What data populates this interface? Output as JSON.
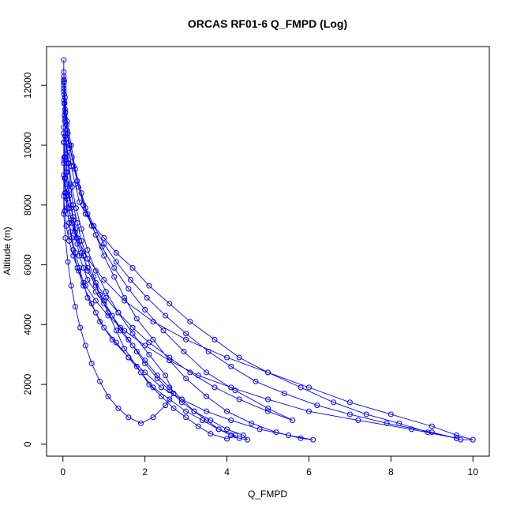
{
  "chart_data": {
    "type": "scatter",
    "title": "ORCAS RF01-6 Q_FMPD (Log)",
    "xlabel": "Q_FMPD",
    "ylabel": "Altitude (m)",
    "xlim": [
      -0.4,
      10.4
    ],
    "ylim": [
      -400,
      13300
    ],
    "x_ticks": [
      "0",
      "2",
      "4",
      "6",
      "8",
      "10"
    ],
    "x_tick_values": [
      0,
      2,
      4,
      6,
      8,
      10
    ],
    "y_ticks": [
      "0",
      "2000",
      "4000",
      "6000",
      "8000",
      "10000",
      "12000"
    ],
    "y_tick_values": [
      0,
      2000,
      4000,
      6000,
      8000,
      10000,
      12000
    ],
    "grid": false,
    "series_color": "#0000ff",
    "marker": "open-circle",
    "connect_points": true,
    "x": [
      0.02,
      0.02,
      0.03,
      0.02,
      0.03,
      0.05,
      0.05,
      0.08,
      0.1,
      0.15,
      0.2,
      0.25,
      0.3,
      0.4,
      0.5,
      0.6,
      0.8,
      1.0,
      1.2,
      1.4,
      1.7,
      2.0,
      2.3,
      2.6,
      2.9,
      3.2,
      3.5,
      3.8,
      4.1,
      4.3,
      4.5,
      4.4,
      4.0,
      3.6,
      3.2,
      2.9,
      2.6,
      2.3,
      2.0,
      1.8,
      1.6,
      1.4,
      1.2,
      1.0,
      0.8,
      0.6,
      0.5,
      0.4,
      0.35,
      0.3,
      0.25,
      0.2,
      0.15,
      0.1,
      0.08,
      0.05,
      0.03,
      0.02,
      0.02,
      0.03,
      0.05,
      0.08,
      0.12,
      0.18,
      0.25,
      0.35,
      0.45,
      0.6,
      0.75,
      0.9,
      1.1,
      1.3,
      1.5,
      1.8,
      2.1,
      2.4,
      2.7,
      3.0,
      3.3,
      3.6,
      4.0,
      4.2,
      3.8,
      3.4,
      3.0,
      2.6,
      2.2,
      1.9,
      1.6,
      1.3,
      1.0,
      0.8,
      0.6,
      0.5,
      0.4,
      0.3,
      0.22,
      0.15,
      0.1,
      0.05,
      0.02,
      0.02,
      0.05,
      0.1,
      0.2,
      0.3,
      0.45,
      0.6,
      0.8,
      1.0,
      1.25,
      1.5,
      1.8,
      2.2,
      2.6,
      3.0,
      3.5,
      4.0,
      4.6,
      5.2,
      5.8,
      6.1,
      5.5,
      4.8,
      4.1,
      3.5,
      2.9,
      2.4,
      2.0,
      1.6,
      1.2,
      0.9,
      0.7,
      0.5,
      0.35,
      0.25,
      0.18,
      0.12,
      0.08,
      0.05,
      0.03,
      0.02,
      0.02,
      0.03,
      0.06,
      0.1,
      0.15,
      0.2,
      0.3,
      0.4,
      0.55,
      0.75,
      1.0,
      1.3,
      1.7,
      2.1,
      2.6,
      3.1,
      3.7,
      4.3,
      5.0,
      5.8,
      6.6,
      7.4,
      8.2,
      8.9,
      9.6,
      9.7,
      10.0,
      9.6,
      9.0,
      8.0,
      7.0,
      6.0,
      5.0,
      4.0,
      3.0,
      2.2,
      1.5,
      1.0,
      0.6,
      0.35,
      0.2,
      0.1,
      0.05,
      0.03,
      0.02,
      0.02,
      0.04,
      0.08,
      0.14,
      0.22,
      0.32,
      0.45,
      0.6,
      0.8,
      1.05,
      1.35,
      1.7,
      2.1,
      2.5,
      2.7,
      2.5,
      2.2,
      1.9,
      1.6,
      1.35,
      1.1,
      0.9,
      0.7,
      0.55,
      0.42,
      0.3,
      0.2,
      0.12,
      0.06,
      0.02,
      0.02,
      0.05,
      0.12,
      0.22,
      0.35,
      0.5,
      0.7,
      0.95,
      1.25,
      1.6,
      2.0,
      2.45,
      2.95,
      3.5,
      4.2,
      5.0,
      5.6,
      5.0,
      4.3,
      3.7,
      3.1,
      2.6,
      2.1,
      1.7,
      1.35,
      1.05,
      0.8,
      0.6,
      0.45,
      0.32,
      0.22,
      0.14,
      0.08,
      0.04,
      0.02,
      0.02,
      0.04,
      0.09,
      0.16,
      0.26,
      0.38,
      0.55,
      0.75,
      1.0,
      1.3,
      1.65,
      2.05,
      2.5,
      3.0,
      3.55,
      4.1,
      4.7,
      5.4,
      6.2,
      7.0,
      7.9,
      9.0,
      9.6,
      8.5,
      7.2,
      6.0,
      5.0,
      4.1,
      3.3,
      2.6,
      2.0,
      1.5,
      1.1,
      0.8,
      0.55,
      0.38,
      0.25,
      0.15,
      0.08,
      0.04,
      0.02
    ],
    "y": [
      12850,
      12450,
      12150,
      11800,
      11400,
      10900,
      10300,
      9700,
      9100,
      8500,
      8000,
      7600,
      7200,
      6800,
      6300,
      5800,
      5300,
      4800,
      4300,
      3800,
      3300,
      2800,
      2300,
      1900,
      1500,
      1100,
      800,
      500,
      300,
      200,
      150,
      300,
      500,
      800,
      1100,
      1400,
      1800,
      2200,
      2700,
      3100,
      3500,
      3900,
      4300,
      4700,
      5100,
      5500,
      5900,
      6300,
      6700,
      7100,
      7500,
      7900,
      8300,
      8700,
      9100,
      9600,
      10100,
      10600,
      12100,
      11500,
      10800,
      10100,
      9400,
      8700,
      8000,
      7400,
      6800,
      6200,
      5600,
      5000,
      4400,
      3800,
      3200,
      2600,
      2000,
      1600,
      1200,
      900,
      600,
      350,
      180,
      300,
      500,
      800,
      1100,
      1500,
      1900,
      2400,
      2900,
      3400,
      3900,
      4400,
      4900,
      5400,
      5900,
      6400,
      6900,
      7400,
      7900,
      8400,
      9000,
      12300,
      11600,
      10800,
      10000,
      9200,
      8400,
      7700,
      7000,
      6300,
      5600,
      4900,
      4200,
      3500,
      2800,
      2200,
      1600,
      1100,
      700,
      400,
      200,
      150,
      300,
      500,
      800,
      1100,
      1500,
      1900,
      2400,
      2900,
      3500,
      4100,
      4700,
      5300,
      5900,
      6500,
      7100,
      7700,
      8300,
      8900,
      9500,
      10100,
      12200,
      11700,
      11100,
      10500,
      9900,
      9300,
      8700,
      8100,
      7700,
      7300,
      6900,
      6400,
      5900,
      5300,
      4700,
      4100,
      3500,
      2900,
      2400,
      1900,
      1400,
      1000,
      700,
      400,
      200,
      150,
      150,
      300,
      600,
      1000,
      1400,
      1900,
      2400,
      2900,
      3500,
      4100,
      4800,
      5500,
      6200,
      6900,
      7500,
      8200,
      8900,
      9600,
      10400,
      11900,
      11000,
      10200,
      9400,
      8600,
      7900,
      7200,
      6500,
      5800,
      5100,
      4400,
      3700,
      3000,
      2300,
      1700,
      1300,
      900,
      700,
      900,
      1200,
      1600,
      2100,
      2700,
      3300,
      3900,
      4600,
      5300,
      6100,
      6900,
      7700,
      12000,
      11200,
      10400,
      9600,
      8800,
      8000,
      7300,
      6600,
      5900,
      5200,
      4500,
      3800,
      3100,
      2400,
      1800,
      1200,
      800,
      1100,
      1500,
      1900,
      2400,
      2900,
      3400,
      3900,
      4400,
      4900,
      5400,
      5900,
      6400,
      6900,
      7400,
      7900,
      8400,
      8900,
      9400,
      12100,
      11400,
      10700,
      10000,
      9300,
      8600,
      7900,
      7300,
      6700,
      6100,
      5500,
      4900,
      4300,
      3700,
      3100,
      2600,
      2100,
      1700,
      1300,
      1000,
      700,
      400,
      200,
      500,
      800,
      1100,
      1500,
      1900,
      2300,
      2800,
      3300,
      3800,
      4300,
      4800,
      5300,
      5800,
      6300,
      6800,
      7300,
      7800,
      8300
    ]
  }
}
